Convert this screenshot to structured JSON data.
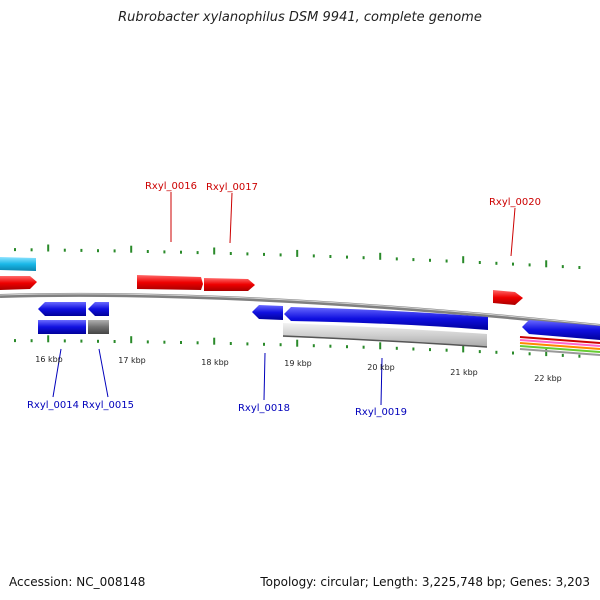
{
  "title": "Rubrobacter xylanophilus DSM 9941, complete genome",
  "footer": {
    "accession": "Accession: NC_008148",
    "summary": "Topology: circular; Length: 3,225,748 bp; Genes: 3,203"
  },
  "axis": {
    "tick_labels": [
      "16 kbp",
      "17 kbp",
      "18 kbp",
      "19 kbp",
      "20 kbp",
      "21 kbp",
      "22 kbp"
    ]
  },
  "genes_plus": [
    {
      "name": "",
      "color": "#1ab8e8"
    },
    {
      "name": "",
      "color": "#e8000b"
    },
    {
      "name": "Rxyl_0016",
      "color": "#e8000b"
    },
    {
      "name": "Rxyl_0017",
      "color": "#e8000b"
    },
    {
      "name": "Rxyl_0020",
      "color": "#e8000b"
    }
  ],
  "genes_minus": [
    {
      "name": "Rxyl_0014",
      "color": "#1010e0"
    },
    {
      "name": "Rxyl_0015",
      "color": "#1010e0"
    },
    {
      "name": "Rxyl_0018",
      "color": "#1010e0"
    },
    {
      "name": "Rxyl_0019",
      "color": "#1010e0"
    },
    {
      "name": "",
      "color": "#1010e0"
    }
  ],
  "features": [
    {
      "name": "",
      "color": "#1010e0"
    },
    {
      "name": "",
      "color": "#777777"
    },
    {
      "name": "",
      "color": "#c8c8c8"
    },
    {
      "name": "",
      "color": "multicolor"
    }
  ],
  "colors": {
    "plus_label": "#cc0000",
    "minus_label": "#0000bb",
    "tick": "#2a8a2a",
    "backbone": "#808080"
  }
}
